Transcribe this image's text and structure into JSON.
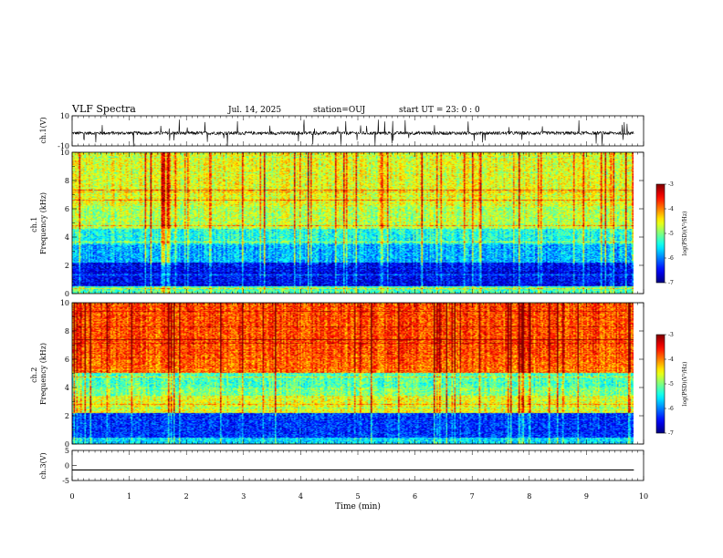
{
  "header": {
    "title": "VLF Spectra",
    "date": "Jul. 14, 2025",
    "station": "station=OUJ",
    "start_ut": "start UT = 23: 0 : 0"
  },
  "chart_data": [
    {
      "type": "line",
      "id": "ch1-waveform",
      "ylabel": "ch.1(V)",
      "ylim": [
        -10,
        10
      ],
      "ytick_labels": [
        "10",
        "-10"
      ],
      "xlim": [
        0,
        10
      ],
      "baseline": -1.5,
      "description_values": {
        "typical_min": -3,
        "typical_max": 0,
        "spike_min": -9,
        "spike_max": 7
      }
    },
    {
      "type": "heatmap",
      "id": "ch1-spectrogram",
      "ylabel": "ch.1\nFrequency (kHz)",
      "ylim": [
        0,
        10
      ],
      "ytick_labels": [
        "0",
        "2",
        "4",
        "6",
        "8",
        "10"
      ],
      "xlim": [
        0,
        9.83
      ],
      "colorbar": {
        "label": "log(PSD)(V²/Hz)",
        "range": [
          -7,
          -3
        ],
        "tick_labels": [
          "-3",
          "-4",
          "-5",
          "-6",
          "-7"
        ]
      },
      "bands": [
        {
          "from": 0,
          "to": 0.5,
          "level": -5.2
        },
        {
          "from": 0.5,
          "to": 2.2,
          "level": -6.5
        },
        {
          "from": 2.2,
          "to": 3.5,
          "level": -5.8
        },
        {
          "from": 3.5,
          "to": 4.6,
          "level": -5.4
        },
        {
          "from": 4.6,
          "to": 6.2,
          "level": -4.8
        },
        {
          "from": 6.2,
          "to": 10,
          "level": -4.6
        }
      ]
    },
    {
      "type": "heatmap",
      "id": "ch2-spectrogram",
      "ylabel": "ch.2\nFrequency (kHz)",
      "ylim": [
        0,
        10
      ],
      "ytick_labels": [
        "0",
        "2",
        "4",
        "6",
        "8",
        "10"
      ],
      "xlim": [
        0,
        9.83
      ],
      "colorbar": {
        "label": "log(PSD)(V²/Hz)",
        "range": [
          -7,
          -3
        ],
        "tick_labels": [
          "-3",
          "-4",
          "-5",
          "-6",
          "-7"
        ]
      },
      "bands": [
        {
          "from": 0,
          "to": 0.4,
          "level": -5.6
        },
        {
          "from": 0.4,
          "to": 2.2,
          "level": -6.3
        },
        {
          "from": 2.2,
          "to": 3.4,
          "level": -4.6
        },
        {
          "from": 3.4,
          "to": 4.0,
          "level": -5.0
        },
        {
          "from": 4.0,
          "to": 5.0,
          "level": -5.2
        },
        {
          "from": 5.0,
          "to": 6.0,
          "level": -3.9
        },
        {
          "from": 6.0,
          "to": 10,
          "level": -3.8
        }
      ]
    },
    {
      "type": "line",
      "id": "ch3-waveform",
      "ylabel": "ch.3(V)",
      "ylim": [
        -5,
        5
      ],
      "ytick_labels": [
        "5",
        "0",
        "-5"
      ],
      "xlim": [
        0,
        9.83
      ],
      "x": [
        0,
        9.83
      ],
      "y": [
        -1.5,
        -1.5
      ]
    }
  ],
  "x_axis": {
    "label": "Time (min)",
    "tick_labels": [
      "0",
      "1",
      "2",
      "3",
      "4",
      "5",
      "6",
      "7",
      "8",
      "9",
      "10"
    ],
    "xlim": [
      0,
      10
    ]
  }
}
